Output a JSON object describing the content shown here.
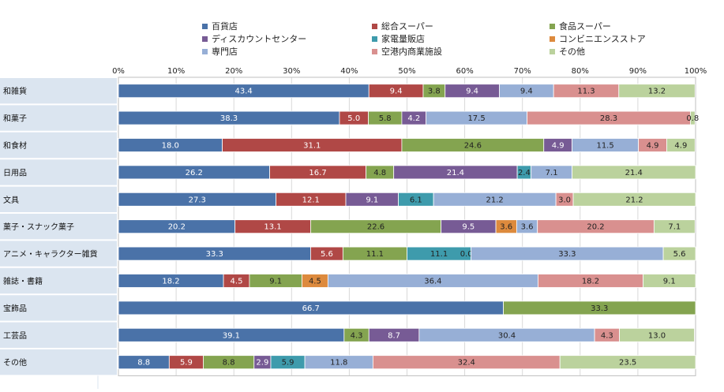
{
  "chart_data": {
    "type": "bar",
    "orientation": "horizontal",
    "stacked": "percent",
    "title": "",
    "xlabel": "",
    "ylabel": "",
    "xlim": [
      0,
      100
    ],
    "x_tick_labels": [
      "0%",
      "10%",
      "20%",
      "30%",
      "40%",
      "50%",
      "60%",
      "70%",
      "80%",
      "90%",
      "100%"
    ],
    "grid": true,
    "legend_position": "top",
    "categories": [
      "和雑貨",
      "和菓子",
      "和食材",
      "日用品",
      "文具",
      "菓子・スナック菓子",
      "アニメ・キャラクター雑貨",
      "雑誌・書籍",
      "宝飾品",
      "工芸品",
      "その他"
    ],
    "series": [
      {
        "name": "百貨店",
        "color": "#4a72a8",
        "values": [
          43.4,
          38.3,
          18.0,
          26.2,
          27.3,
          20.2,
          33.3,
          18.2,
          66.7,
          39.1,
          8.8
        ],
        "labels": [
          "43.4",
          "38.3",
          "18.0",
          "26.2",
          "27.3",
          "20.2",
          "33.3",
          "18.2",
          "66.7",
          "39.1",
          "8.8"
        ]
      },
      {
        "name": "総合スーパー",
        "color": "#b04846",
        "values": [
          9.4,
          5.0,
          31.1,
          16.7,
          12.1,
          13.1,
          5.6,
          4.5,
          0,
          0,
          5.9
        ],
        "labels": [
          "9.4",
          "5.0",
          "31.1",
          "16.7",
          "12.1",
          "13.1",
          "5.6",
          "4.5",
          "",
          "",
          "5.9"
        ]
      },
      {
        "name": "食品スーパー",
        "color": "#84a450",
        "values": [
          3.8,
          5.8,
          24.6,
          4.8,
          0,
          22.6,
          11.1,
          9.1,
          33.3,
          4.3,
          8.8
        ],
        "labels": [
          "3.8",
          "5.8",
          "24.6",
          "4.8",
          "",
          "22.6",
          "11.1",
          "9.1",
          "33.3",
          "4.3",
          "8.8"
        ]
      },
      {
        "name": "ディスカウントセンター",
        "color": "#775b95",
        "values": [
          9.4,
          4.2,
          4.9,
          21.4,
          9.1,
          9.5,
          0,
          0,
          0,
          8.7,
          2.9
        ],
        "labels": [
          "9.4",
          "4.2",
          "4.9",
          "21.4",
          "9.1",
          "9.5",
          "",
          "",
          "",
          "8.7",
          "2.9"
        ]
      },
      {
        "name": "家電量販店",
        "color": "#3e9bac",
        "values": [
          0,
          0,
          0,
          2.4,
          6.1,
          0,
          11.1,
          0,
          0,
          0,
          5.9
        ],
        "labels": [
          "",
          "",
          "",
          "2.4",
          "6.1",
          "",
          "11.1",
          "",
          "",
          "",
          "5.9"
        ]
      },
      {
        "name": "コンビニエンスストア",
        "color": "#dd8a3d",
        "values": [
          0,
          0,
          0,
          0,
          0,
          3.6,
          0.0,
          4.5,
          0,
          0,
          0
        ],
        "labels": [
          "",
          "",
          "",
          "",
          "",
          "3.6",
          "0.0",
          "4.5",
          "",
          "",
          ""
        ]
      },
      {
        "name": "専門店",
        "color": "#97afd6",
        "values": [
          9.4,
          17.5,
          11.5,
          7.1,
          21.2,
          3.6,
          33.3,
          36.4,
          0,
          30.4,
          11.8
        ],
        "labels": [
          "9.4",
          "17.5",
          "11.5",
          "7.1",
          "21.2",
          "3.6",
          "33.3",
          "36.4",
          "",
          "30.4",
          "11.8"
        ]
      },
      {
        "name": "空港内商業施設",
        "color": "#d9908f",
        "values": [
          11.3,
          28.3,
          4.9,
          0,
          3.0,
          20.2,
          0,
          18.2,
          0,
          4.3,
          32.4
        ],
        "labels": [
          "11.3",
          "28.3",
          "4.9",
          "",
          "3.0",
          "20.2",
          "",
          "18.2",
          "",
          "4.3",
          "32.4"
        ]
      },
      {
        "name": "その他",
        "color": "#bbd29d",
        "values": [
          13.2,
          0.8,
          4.9,
          21.4,
          21.2,
          7.1,
          5.6,
          9.1,
          0,
          13.0,
          23.5
        ],
        "labels": [
          "13.2",
          "0.8",
          "4.9",
          "21.4",
          "21.2",
          "7.1",
          "5.6",
          "9.1",
          "",
          "13.0",
          "23.5"
        ]
      }
    ]
  }
}
